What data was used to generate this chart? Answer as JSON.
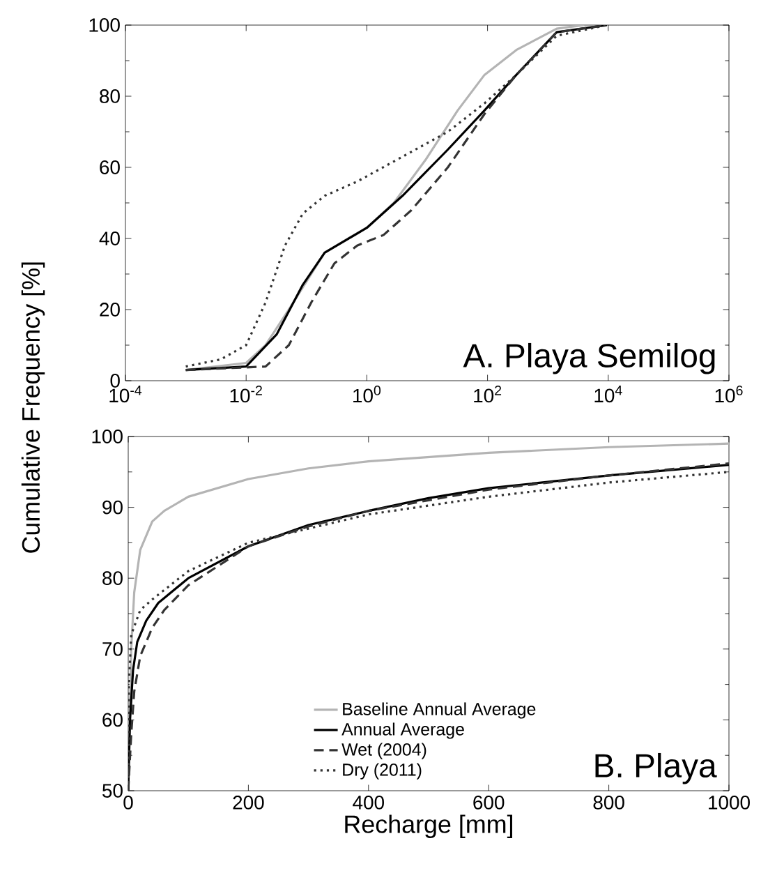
{
  "chart_data": [
    {
      "type": "line",
      "ylabel": "Cumulative Frequency [%]",
      "annotations": [
        "A. Playa Semilog"
      ],
      "log": "x",
      "xlim": [
        0.0001,
        1000000
      ],
      "ylim": [
        0,
        100
      ],
      "xticks": [
        {
          "value": 0.0001,
          "label": "10$^{-4}$"
        },
        {
          "value": 0.01,
          "label": "10$^{-2}$"
        },
        {
          "value": 1,
          "label": "10$^{0}$"
        },
        {
          "value": 100,
          "label": "10$^{2}$"
        },
        {
          "value": 10000,
          "label": "10$^{4}$"
        },
        {
          "value": 1000000,
          "label": "10$^{6}$"
        }
      ],
      "yticks": [
        0,
        20,
        40,
        60,
        80,
        100
      ],
      "series": [
        {
          "color": "#b4b4b4",
          "line_style": "solid",
          "x": [
            0.001,
            0.01,
            0.021,
            0.051,
            0.12,
            0.2,
            0.49,
            1,
            2.8,
            9.3,
            32,
            89,
            300,
            1400,
            4000
          ],
          "values": [
            3,
            5,
            10,
            20,
            30,
            36,
            40,
            43,
            50,
            62,
            76,
            86,
            93,
            99,
            100
          ]
        },
        {
          "color": "#000000",
          "line_style": "solid",
          "x": [
            0.001,
            0.01,
            0.032,
            0.087,
            0.2,
            1,
            3.9,
            22,
            89,
            300,
            1400,
            9500
          ],
          "values": [
            3,
            4,
            13,
            27,
            36,
            43,
            52,
            65,
            76,
            86,
            98,
            100
          ]
        },
        {
          "color": "#333333",
          "line_style": "dashed",
          "x": [
            0.001,
            0.021,
            0.051,
            0.12,
            0.29,
            0.69,
            1.9,
            5.5,
            22,
            89,
            300,
            1400,
            9500
          ],
          "values": [
            3,
            4,
            10,
            22,
            33,
            38,
            41,
            48,
            60,
            75,
            86,
            98,
            100
          ]
        },
        {
          "color": "#333333",
          "line_style": "dotted",
          "x": [
            0.001,
            0.0038,
            0.01,
            0.021,
            0.044,
            0.087,
            0.2,
            0.69,
            3.9,
            22,
            89,
            300,
            1400,
            9500
          ],
          "values": [
            4,
            6,
            10,
            22,
            38,
            47,
            52,
            56,
            63,
            70,
            78,
            86,
            97,
            100
          ]
        }
      ]
    },
    {
      "type": "line",
      "xlabel": "Recharge [mm]",
      "annotations": [
        "B. Playa"
      ],
      "legend": "bottom",
      "xlim": [
        0,
        1000
      ],
      "ylim": [
        50,
        100
      ],
      "xticks": [
        0,
        200,
        400,
        600,
        800,
        1000
      ],
      "yticks": [
        50,
        60,
        70,
        80,
        90,
        100
      ],
      "series": [
        {
          "name": "Baseline Annual Average",
          "color": "#b4b4b4",
          "line_style": "solid",
          "x": [
            0,
            5,
            10,
            20,
            40,
            60,
            100,
            200,
            300,
            400,
            600,
            800,
            1000
          ],
          "values": [
            50,
            70,
            78,
            84,
            88,
            89.5,
            91.5,
            94,
            95.5,
            96.5,
            97.7,
            98.5,
            99
          ]
        },
        {
          "name": "Annual Average",
          "color": "#000000",
          "line_style": "solid",
          "x": [
            0,
            3,
            8,
            15,
            30,
            50,
            100,
            200,
            300,
            400,
            500,
            600,
            800,
            1000
          ],
          "values": [
            50,
            60,
            67,
            71,
            74,
            76.5,
            80,
            84.5,
            87.5,
            89.5,
            91.3,
            92.7,
            94.5,
            96
          ]
        },
        {
          "name": "Wet (2004)",
          "color": "#333333",
          "line_style": "dashed",
          "x": [
            0,
            5,
            10,
            20,
            40,
            60,
            100,
            200,
            300,
            400,
            600,
            800,
            1000
          ],
          "values": [
            50,
            58,
            64,
            69,
            73,
            75.5,
            79,
            84.5,
            87.3,
            89.5,
            92.5,
            94.5,
            96.2
          ]
        },
        {
          "name": "Dry (2011)",
          "color": "#333333",
          "line_style": "dotted",
          "x": [
            0,
            1,
            5,
            20,
            40,
            100,
            200,
            300,
            400,
            600,
            800,
            1000
          ],
          "values": [
            50,
            65,
            72,
            75.5,
            77,
            81,
            85,
            87,
            89,
            91.5,
            93.5,
            95
          ]
        }
      ]
    }
  ]
}
